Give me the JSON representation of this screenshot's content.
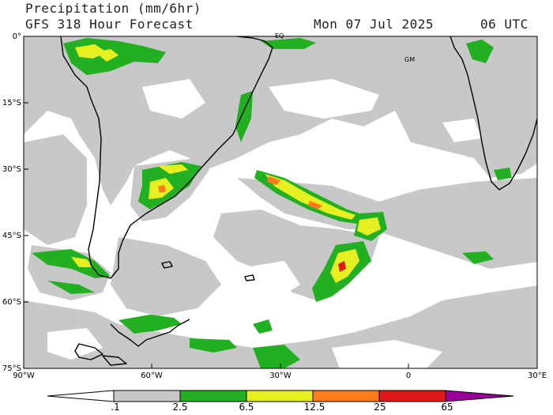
{
  "header": {
    "title": "Precipitation (mm/6hr)",
    "subtitle": "GFS 318 Hour Forecast",
    "date": "Mon 07 Jul 2025",
    "hour": "06 UTC"
  },
  "map": {
    "lat_labels": [
      "0°",
      "15°S",
      "30°S",
      "45°S",
      "60°S",
      "75°S"
    ],
    "lon_labels": [
      "90°W",
      "60°W",
      "30°W",
      "0",
      "30°E"
    ],
    "annotations": [
      "EQ",
      "GM"
    ],
    "colors": {
      "light": "#c8c8c8",
      "green": "#22b022",
      "yellow": "#e6f020",
      "orange": "#ff7a1a",
      "red": "#e01818",
      "purple": "#990099",
      "coast": "#000000"
    }
  },
  "colorbar": {
    "labels": [
      ".1",
      "2.5",
      "6.5",
      "12.5",
      "25",
      "65"
    ],
    "colors": [
      "#ffffff",
      "#c8c8c8",
      "#22b022",
      "#e6f020",
      "#ff7a1a",
      "#e01818",
      "#990099"
    ]
  }
}
